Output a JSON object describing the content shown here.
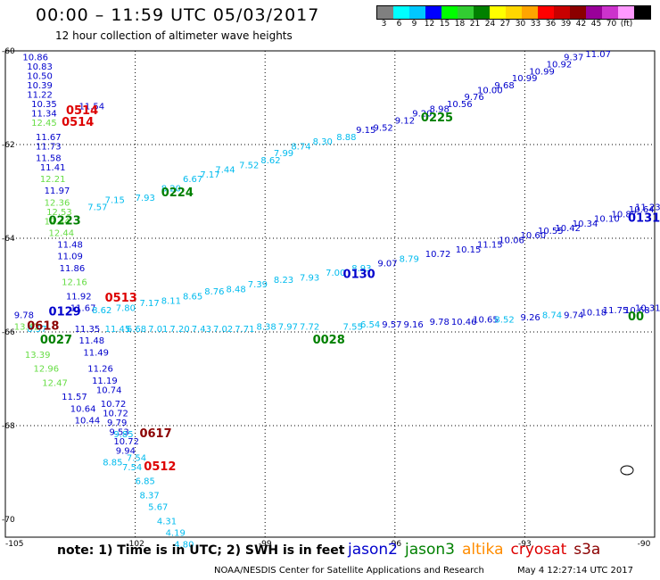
{
  "header": {
    "title": "00:00 – 11:59 UTC 05/03/2017",
    "subtitle": "12 hour collection of altimeter wave heights"
  },
  "colorbar": {
    "colors": [
      "#808080",
      "#00ffff",
      "#00c8ff",
      "#0000ff",
      "#00ff00",
      "#32cd32",
      "#008000",
      "#ffff00",
      "#ffd700",
      "#ffa500",
      "#ff0000",
      "#c80000",
      "#8b0000",
      "#990099",
      "#cc33cc",
      "#ff99ff",
      "#000000"
    ],
    "labels": [
      "3",
      "6",
      "9",
      "12",
      "15",
      "18",
      "21",
      "24",
      "27",
      "30",
      "33",
      "36",
      "39",
      "42",
      "45",
      "70",
      "(ft)"
    ]
  },
  "axes": {
    "lon_labels": [
      "-105",
      "-102",
      "-99",
      "-96",
      "-93",
      "-90"
    ],
    "lat_labels": [
      "-60",
      "-62",
      "-64",
      "-66",
      "-68",
      "-70"
    ]
  },
  "colors": {
    "jason2": "#0000cc",
    "jason3": "#008000",
    "altika": "#ff8c00",
    "cryosat": "#dd0000",
    "s3a": "#8b0000",
    "light_green": "#66dd44",
    "cyan": "#00bbee",
    "blue": "#0000cc"
  },
  "tracks": [
    {
      "name": "west-column",
      "points": [
        {
          "lon": -104.6,
          "lat": -60.2,
          "v": "10.86",
          "c": "blue"
        },
        {
          "lon": -104.5,
          "lat": -60.4,
          "v": "10.83",
          "c": "blue"
        },
        {
          "lon": -104.5,
          "lat": -60.6,
          "v": "10.50",
          "c": "blue"
        },
        {
          "lon": -104.5,
          "lat": -60.8,
          "v": "10.39",
          "c": "blue"
        },
        {
          "lon": -104.5,
          "lat": -61.0,
          "v": "11.22",
          "c": "blue"
        },
        {
          "lon": -104.4,
          "lat": -61.2,
          "v": "10.35",
          "c": "blue"
        },
        {
          "lon": -104.4,
          "lat": -61.4,
          "v": "11.34",
          "c": "blue"
        },
        {
          "lon": -104.4,
          "lat": -61.6,
          "v": "12.45",
          "c": "light_green"
        },
        {
          "lon": -104.3,
          "lat": -61.9,
          "v": "11.67",
          "c": "blue"
        },
        {
          "lon": -104.3,
          "lat": -62.1,
          "v": "11.73",
          "c": "blue"
        },
        {
          "lon": -104.3,
          "lat": -62.35,
          "v": "11.58",
          "c": "blue"
        },
        {
          "lon": -104.2,
          "lat": -62.55,
          "v": "11.41",
          "c": "blue"
        },
        {
          "lon": -104.2,
          "lat": -62.8,
          "v": "12.21",
          "c": "light_green"
        },
        {
          "lon": -104.1,
          "lat": -63.05,
          "v": "11.97",
          "c": "blue"
        },
        {
          "lon": -104.1,
          "lat": -63.3,
          "v": "12.36",
          "c": "light_green"
        },
        {
          "lon": -104.05,
          "lat": -63.5,
          "v": "12.53",
          "c": "light_green"
        },
        {
          "lon": -104.0,
          "lat": -63.95,
          "v": "12.44",
          "c": "light_green"
        },
        {
          "lon": -103.8,
          "lat": -64.2,
          "v": "11.48",
          "c": "blue"
        },
        {
          "lon": -103.8,
          "lat": -64.45,
          "v": "11.09",
          "c": "blue"
        },
        {
          "lon": -103.75,
          "lat": -64.7,
          "v": "11.86",
          "c": "blue"
        },
        {
          "lon": -103.7,
          "lat": -65.0,
          "v": "12.16",
          "c": "light_green"
        },
        {
          "lon": -103.6,
          "lat": -65.3,
          "v": "11.92",
          "c": "blue"
        },
        {
          "lon": -103.5,
          "lat": -65.55,
          "v": "11.67",
          "c": "blue"
        },
        {
          "lon": -103.4,
          "lat": -66.0,
          "v": "11.35",
          "c": "blue"
        },
        {
          "lon": -103.3,
          "lat": -66.25,
          "v": "11.48",
          "c": "blue"
        },
        {
          "lon": -103.2,
          "lat": -66.5,
          "v": "11.49",
          "c": "blue"
        },
        {
          "lon": -103.1,
          "lat": -66.85,
          "v": "11.26",
          "c": "blue"
        },
        {
          "lon": -103.0,
          "lat": -67.1,
          "v": "11.19",
          "c": "blue"
        },
        {
          "lon": -102.9,
          "lat": -67.3,
          "v": "10.74",
          "c": "blue"
        },
        {
          "lon": -102.8,
          "lat": -67.6,
          "v": "10.72",
          "c": "blue"
        },
        {
          "lon": -102.75,
          "lat": -67.8,
          "v": "10.72",
          "c": "blue"
        },
        {
          "lon": -102.65,
          "lat": -68.0,
          "v": "9.79",
          "c": "blue"
        },
        {
          "lon": -102.6,
          "lat": -68.2,
          "v": "9.53",
          "c": "blue"
        },
        {
          "lon": -102.5,
          "lat": -68.4,
          "v": "10.72",
          "c": "blue"
        },
        {
          "lon": -102.45,
          "lat": -68.6,
          "v": "9.94",
          "c": "blue"
        },
        {
          "lon": -103.3,
          "lat": -61.25,
          "v": "11.54",
          "c": "blue"
        },
        {
          "lon": -104.1,
          "lat": -63.7,
          "v": "12.44",
          "c": "light_green"
        }
      ]
    },
    {
      "name": "west-green",
      "points": [
        {
          "lon": -104.8,
          "lat": -65.95,
          "v": "13.42",
          "c": "light_green"
        },
        {
          "lon": -104.55,
          "lat": -66.55,
          "v": "13.39",
          "c": "light_green"
        },
        {
          "lon": -104.35,
          "lat": -66.85,
          "v": "12.96",
          "c": "light_green"
        },
        {
          "lon": -104.15,
          "lat": -67.15,
          "v": "12.47",
          "c": "light_green"
        },
        {
          "lon": -103.7,
          "lat": -67.45,
          "v": "11.57",
          "c": "blue"
        },
        {
          "lon": -103.5,
          "lat": -67.7,
          "v": "10.64",
          "c": "blue"
        },
        {
          "lon": -103.4,
          "lat": -67.95,
          "v": "10.44",
          "c": "blue"
        },
        {
          "lon": -104.8,
          "lat": -65.7,
          "v": "9.78",
          "c": "blue"
        }
      ]
    },
    {
      "name": "cyan-south",
      "points": [
        {
          "lon": -102.2,
          "lat": -68.75,
          "v": "7.54",
          "c": "cyan"
        },
        {
          "lon": -102.75,
          "lat": -68.85,
          "v": "8.85",
          "c": "cyan"
        },
        {
          "lon": -102.3,
          "lat": -68.95,
          "v": "7.54",
          "c": "cyan"
        },
        {
          "lon": -102.0,
          "lat": -69.25,
          "v": "6.85",
          "c": "cyan"
        },
        {
          "lon": -101.9,
          "lat": -69.55,
          "v": "8.37",
          "c": "cyan"
        },
        {
          "lon": -101.7,
          "lat": -69.8,
          "v": "5.67",
          "c": "cyan"
        },
        {
          "lon": -101.5,
          "lat": -70.1,
          "v": "4.31",
          "c": "cyan"
        },
        {
          "lon": -101.3,
          "lat": -70.35,
          "v": "4.19",
          "c": "cyan"
        },
        {
          "lon": -101.1,
          "lat": -70.6,
          "v": "4.80",
          "c": "cyan"
        },
        {
          "lon": -102.5,
          "lat": -68.25,
          "v": "9.85",
          "c": "cyan"
        }
      ]
    },
    {
      "name": "ne-track",
      "points": [
        {
          "lon": -103.1,
          "lat": -63.4,
          "v": "7.57",
          "c": "cyan"
        },
        {
          "lon": -102.7,
          "lat": -63.25,
          "v": "7.15",
          "c": "cyan"
        },
        {
          "lon": -102.0,
          "lat": -63.2,
          "v": "7.93",
          "c": "cyan"
        },
        {
          "lon": -101.4,
          "lat": -63.0,
          "v": "8.20",
          "c": "cyan"
        },
        {
          "lon": -100.9,
          "lat": -62.8,
          "v": "6.67",
          "c": "cyan"
        },
        {
          "lon": -100.5,
          "lat": -62.7,
          "v": "7.17",
          "c": "cyan"
        },
        {
          "lon": -100.15,
          "lat": -62.6,
          "v": "7.44",
          "c": "cyan"
        },
        {
          "lon": -99.6,
          "lat": -62.5,
          "v": "7.52",
          "c": "cyan"
        },
        {
          "lon": -99.1,
          "lat": -62.4,
          "v": "8.62",
          "c": "cyan"
        },
        {
          "lon": -98.8,
          "lat": -62.25,
          "v": "7.99",
          "c": "cyan"
        },
        {
          "lon": -98.4,
          "lat": -62.1,
          "v": "8.74",
          "c": "cyan"
        },
        {
          "lon": -97.9,
          "lat": -62.0,
          "v": "8.30",
          "c": "cyan"
        },
        {
          "lon": -97.35,
          "lat": -61.9,
          "v": "8.88",
          "c": "cyan"
        },
        {
          "lon": -96.9,
          "lat": -61.75,
          "v": "9.15",
          "c": "blue"
        },
        {
          "lon": -96.5,
          "lat": -61.7,
          "v": "9.52",
          "c": "blue"
        },
        {
          "lon": -96.0,
          "lat": -61.55,
          "v": "9.12",
          "c": "blue"
        },
        {
          "lon": -95.6,
          "lat": -61.4,
          "v": "9.20",
          "c": "blue"
        },
        {
          "lon": -95.2,
          "lat": -61.3,
          "v": "8.98",
          "c": "blue"
        },
        {
          "lon": -94.8,
          "lat": -61.2,
          "v": "10.56",
          "c": "blue"
        },
        {
          "lon": -94.4,
          "lat": -61.05,
          "v": "9.76",
          "c": "blue"
        },
        {
          "lon": -94.1,
          "lat": -60.9,
          "v": "10.00",
          "c": "blue"
        },
        {
          "lon": -93.7,
          "lat": -60.8,
          "v": "9.68",
          "c": "blue"
        },
        {
          "lon": -93.3,
          "lat": -60.65,
          "v": "10.99",
          "c": "blue"
        },
        {
          "lon": -92.9,
          "lat": -60.5,
          "v": "10.99",
          "c": "blue"
        },
        {
          "lon": -92.5,
          "lat": -60.35,
          "v": "10.92",
          "c": "blue"
        },
        {
          "lon": -92.1,
          "lat": -60.2,
          "v": "9.37",
          "c": "blue"
        },
        {
          "lon": -91.6,
          "lat": -60.05,
          "v": "11.07",
          "c": "blue"
        }
      ]
    },
    {
      "name": "mid-track",
      "points": [
        {
          "lon": -103.0,
          "lat": -65.6,
          "v": "8.62",
          "c": "cyan"
        },
        {
          "lon": -102.45,
          "lat": -65.55,
          "v": "7.80",
          "c": "cyan"
        },
        {
          "lon": -101.9,
          "lat": -65.45,
          "v": "7.17",
          "c": "cyan"
        },
        {
          "lon": -101.4,
          "lat": -65.4,
          "v": "8.11",
          "c": "cyan"
        },
        {
          "lon": -100.9,
          "lat": -65.3,
          "v": "8.65",
          "c": "cyan"
        },
        {
          "lon": -100.4,
          "lat": -65.2,
          "v": "8.76",
          "c": "cyan"
        },
        {
          "lon": -99.9,
          "lat": -65.15,
          "v": "8.48",
          "c": "cyan"
        },
        {
          "lon": -99.4,
          "lat": -65.05,
          "v": "7.39",
          "c": "cyan"
        },
        {
          "lon": -98.8,
          "lat": -64.95,
          "v": "8.23",
          "c": "cyan"
        },
        {
          "lon": -98.2,
          "lat": -64.9,
          "v": "7.93",
          "c": "cyan"
        },
        {
          "lon": -97.6,
          "lat": -64.8,
          "v": "7.00",
          "c": "cyan"
        },
        {
          "lon": -97.0,
          "lat": -64.7,
          "v": "8.93",
          "c": "cyan"
        },
        {
          "lon": -96.4,
          "lat": -64.6,
          "v": "9.07",
          "c": "blue"
        },
        {
          "lon": -95.9,
          "lat": -64.5,
          "v": "8.79",
          "c": "cyan"
        },
        {
          "lon": -95.3,
          "lat": -64.4,
          "v": "10.72",
          "c": "blue"
        },
        {
          "lon": -94.6,
          "lat": -64.3,
          "v": "10.15",
          "c": "blue"
        },
        {
          "lon": -94.1,
          "lat": -64.2,
          "v": "11.15",
          "c": "blue"
        },
        {
          "lon": -93.6,
          "lat": -64.1,
          "v": "10.06",
          "c": "blue"
        },
        {
          "lon": -93.1,
          "lat": -64.0,
          "v": "10.60",
          "c": "blue"
        },
        {
          "lon": -92.7,
          "lat": -63.9,
          "v": "10.55",
          "c": "blue"
        },
        {
          "lon": -92.3,
          "lat": -63.85,
          "v": "10.42",
          "c": "blue"
        },
        {
          "lon": -91.9,
          "lat": -63.75,
          "v": "10.34",
          "c": "blue"
        },
        {
          "lon": -91.4,
          "lat": -63.65,
          "v": "10.10",
          "c": "blue"
        },
        {
          "lon": -91.0,
          "lat": -63.55,
          "v": "10.87",
          "c": "blue"
        },
        {
          "lon": -90.6,
          "lat": -63.45,
          "v": "10.64",
          "c": "blue"
        },
        {
          "lon": -90.3,
          "lat": -63.4,
          "v": "11.23",
          "c": "blue"
        }
      ]
    },
    {
      "name": "south-track",
      "points": [
        {
          "lon": -102.7,
          "lat": -66.0,
          "v": "11.45",
          "c": "cyan"
        },
        {
          "lon": -102.2,
          "lat": -66.0,
          "v": "6.68",
          "c": "cyan"
        },
        {
          "lon": -101.7,
          "lat": -66.0,
          "v": "7.01",
          "c": "cyan"
        },
        {
          "lon": -101.2,
          "lat": -66.0,
          "v": "7.20",
          "c": "cyan"
        },
        {
          "lon": -100.7,
          "lat": -66.0,
          "v": "7.43",
          "c": "cyan"
        },
        {
          "lon": -100.2,
          "lat": -66.0,
          "v": "7.02",
          "c": "cyan"
        },
        {
          "lon": -99.7,
          "lat": -66.0,
          "v": "7.71",
          "c": "cyan"
        },
        {
          "lon": -99.2,
          "lat": -65.95,
          "v": "8.38",
          "c": "cyan"
        },
        {
          "lon": -98.7,
          "lat": -65.95,
          "v": "7.97",
          "c": "cyan"
        },
        {
          "lon": -98.2,
          "lat": -65.95,
          "v": "7.72",
          "c": "cyan"
        },
        {
          "lon": -97.2,
          "lat": -65.95,
          "v": "7.55",
          "c": "cyan"
        },
        {
          "lon": -96.8,
          "lat": -65.9,
          "v": "6.54",
          "c": "cyan"
        },
        {
          "lon": -96.3,
          "lat": -65.9,
          "v": "9.57",
          "c": "blue"
        },
        {
          "lon": -95.8,
          "lat": -65.9,
          "v": "9.16",
          "c": "blue"
        },
        {
          "lon": -95.2,
          "lat": -65.85,
          "v": "9.78",
          "c": "blue"
        },
        {
          "lon": -94.7,
          "lat": -65.85,
          "v": "10.46",
          "c": "blue"
        },
        {
          "lon": -94.2,
          "lat": -65.8,
          "v": "10.65",
          "c": "blue"
        },
        {
          "lon": -93.7,
          "lat": -65.8,
          "v": "8.52",
          "c": "cyan"
        },
        {
          "lon": -93.1,
          "lat": -65.75,
          "v": "9.26",
          "c": "blue"
        },
        {
          "lon": -92.6,
          "lat": -65.7,
          "v": "8.74",
          "c": "cyan"
        },
        {
          "lon": -92.1,
          "lat": -65.7,
          "v": "9.74",
          "c": "blue"
        },
        {
          "lon": -91.7,
          "lat": -65.65,
          "v": "10.18",
          "c": "blue"
        },
        {
          "lon": -91.2,
          "lat": -65.6,
          "v": "11.75",
          "c": "blue"
        },
        {
          "lon": -90.7,
          "lat": -65.6,
          "v": "10.68",
          "c": "blue"
        },
        {
          "lon": -90.3,
          "lat": -65.55,
          "v": "10.31",
          "c": "blue"
        },
        {
          "lon": -104.5,
          "lat": -66.0,
          "v": "8.57",
          "c": "cyan"
        }
      ]
    }
  ],
  "pass_labels": [
    {
      "lon": -103.6,
      "lat": -61.35,
      "v": "0514",
      "c": "cryosat"
    },
    {
      "lon": -103.7,
      "lat": -61.6,
      "v": "0514",
      "c": "cryosat"
    },
    {
      "lon": -95.4,
      "lat": -61.5,
      "v": "0225",
      "c": "jason3"
    },
    {
      "lon": -101.4,
      "lat": -63.1,
      "v": "0224",
      "c": "jason3"
    },
    {
      "lon": -104.0,
      "lat": -63.7,
      "v": "0223",
      "c": "jason3"
    },
    {
      "lon": -90.3,
      "lat": -63.65,
      "v": "0131",
      "c": "jason2"
    },
    {
      "lon": -97.2,
      "lat": -64.85,
      "v": "0130",
      "c": "jason2"
    },
    {
      "lon": -102.7,
      "lat": -65.35,
      "v": "0513",
      "c": "cryosat"
    },
    {
      "lon": -104.0,
      "lat": -65.65,
      "v": "0129",
      "c": "jason2"
    },
    {
      "lon": -104.5,
      "lat": -65.95,
      "v": "0618",
      "c": "s3a"
    },
    {
      "lon": -104.2,
      "lat": -66.25,
      "v": "0027",
      "c": "jason3"
    },
    {
      "lon": -97.9,
      "lat": -66.25,
      "v": "0028",
      "c": "jason3"
    },
    {
      "lon": -90.0,
      "lat": -65.75,
      "v": "00",
      "c": "jason3"
    },
    {
      "lon": -101.9,
      "lat": -68.25,
      "v": "0617",
      "c": "s3a"
    },
    {
      "lon": -101.8,
      "lat": -68.95,
      "v": "0512",
      "c": "cryosat"
    }
  ],
  "footer": {
    "note": "note: 1) Time is in UTC; 2) SWH is in feet",
    "legend": [
      {
        "label": "jason2",
        "c": "jason2"
      },
      {
        "label": "jason3",
        "c": "jason3"
      },
      {
        "label": "altika",
        "c": "altika"
      },
      {
        "label": "cryosat",
        "c": "cryosat"
      },
      {
        "label": "s3a",
        "c": "s3a"
      }
    ],
    "credit": "NOAA/NESDIS Center for Satellite Applications and Research",
    "generated": "May  4 12:27:14 UTC 2017"
  }
}
